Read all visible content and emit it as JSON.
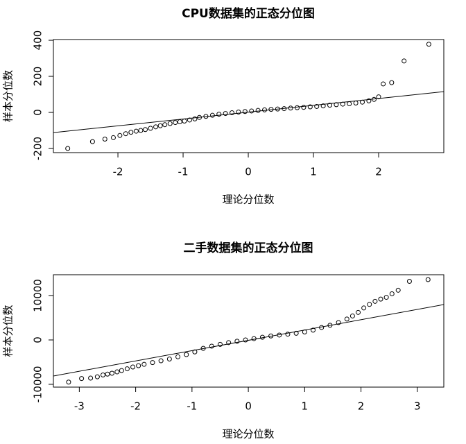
{
  "chart_data": [
    {
      "type": "scatter",
      "title": "CPU数据集的正态分位图",
      "x_label": "理论分位数",
      "y_label": "样本分位数",
      "xlim": [
        -2.99,
        3.0
      ],
      "ylim": [
        -223,
        404
      ],
      "xticks": [
        -2,
        -1,
        0,
        1,
        2
      ],
      "yticks": [
        -200,
        0,
        200,
        400
      ],
      "x": [
        -2.77,
        -2.39,
        -2.2,
        -2.07,
        -1.97,
        -1.88,
        -1.8,
        -1.72,
        -1.65,
        -1.58,
        -1.5,
        -1.42,
        -1.35,
        -1.28,
        -1.2,
        -1.12,
        -1.05,
        -0.98,
        -0.9,
        -0.82,
        -0.75,
        -0.65,
        -0.55,
        -0.45,
        -0.35,
        -0.25,
        -0.15,
        -0.05,
        0.05,
        0.15,
        0.25,
        0.35,
        0.45,
        0.55,
        0.65,
        0.75,
        0.85,
        0.95,
        1.05,
        1.15,
        1.25,
        1.35,
        1.45,
        1.55,
        1.65,
        1.75,
        1.85,
        1.93,
        2.0,
        2.07,
        2.2,
        2.39,
        2.77
      ],
      "values": [
        -200,
        -162,
        -148,
        -140,
        -128,
        -118,
        -110,
        -104,
        -100,
        -95,
        -88,
        -80,
        -74,
        -68,
        -62,
        -56,
        -52,
        -48,
        -42,
        -36,
        -28,
        -22,
        -16,
        -10,
        -6,
        -2,
        2,
        5,
        8,
        11,
        14,
        17,
        19,
        21,
        24,
        26,
        28,
        31,
        33,
        36,
        40,
        43,
        46,
        48,
        52,
        57,
        64,
        72,
        86,
        158,
        165,
        285,
        378
      ],
      "reference_line": {
        "x": [
          -2.99,
          3.0
        ],
        "y": [
          -112,
          115
        ]
      }
    },
    {
      "type": "scatter",
      "title": "二手数据集的正态分位图",
      "x_label": "理论分位数",
      "y_label": "样本分位数",
      "xlim": [
        -3.46,
        3.47
      ],
      "ylim": [
        -10630,
        14690
      ],
      "xticks": [
        -3,
        -2,
        -1,
        0,
        1,
        2,
        3
      ],
      "yticks": [
        -10000,
        0,
        10000
      ],
      "x": [
        -3.19,
        -2.96,
        -2.8,
        -2.68,
        -2.58,
        -2.5,
        -2.42,
        -2.33,
        -2.25,
        -2.15,
        -2.05,
        -1.95,
        -1.85,
        -1.7,
        -1.55,
        -1.4,
        -1.25,
        -1.1,
        -0.95,
        -0.8,
        -0.65,
        -0.5,
        -0.35,
        -0.2,
        -0.05,
        0.1,
        0.25,
        0.4,
        0.55,
        0.7,
        0.85,
        1.0,
        1.15,
        1.3,
        1.45,
        1.6,
        1.75,
        1.85,
        1.95,
        2.05,
        2.15,
        2.25,
        2.35,
        2.45,
        2.55,
        2.66,
        2.86,
        3.19
      ],
      "values": [
        -9500,
        -8700,
        -8600,
        -8300,
        -7900,
        -7700,
        -7500,
        -7200,
        -6900,
        -6500,
        -6100,
        -5800,
        -5500,
        -5100,
        -4700,
        -4300,
        -3800,
        -3300,
        -2700,
        -1900,
        -1400,
        -1000,
        -600,
        -300,
        0,
        300,
        600,
        900,
        1100,
        1300,
        1500,
        1800,
        2200,
        2800,
        3300,
        3900,
        4700,
        5400,
        6200,
        7200,
        8000,
        8700,
        9200,
        9600,
        10400,
        11200,
        13200,
        13600
      ],
      "reference_line": {
        "x": [
          -3.46,
          3.47
        ],
        "y": [
          -8125,
          7970
        ]
      }
    }
  ]
}
